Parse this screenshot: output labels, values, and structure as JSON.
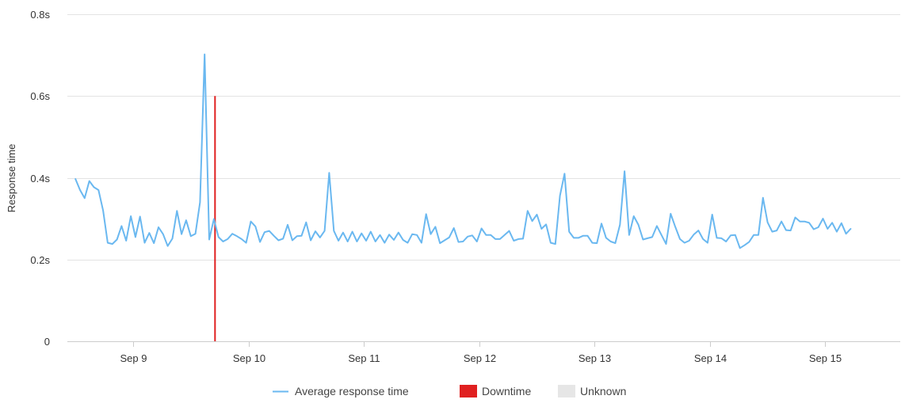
{
  "chart_data": {
    "type": "line",
    "ylabel": "Response time",
    "y_ticks": [
      {
        "value": 0,
        "label": "0"
      },
      {
        "value": 0.2,
        "label": "0.2s"
      },
      {
        "value": 0.4,
        "label": "0.4s"
      },
      {
        "value": 0.6,
        "label": "0.6s"
      },
      {
        "value": 0.8,
        "label": "0.8s"
      }
    ],
    "ylim": [
      0,
      0.8
    ],
    "xlim": [
      8.43,
      15.65
    ],
    "x_ticks": [
      {
        "value": 9,
        "label": "Sep 9"
      },
      {
        "value": 10,
        "label": "Sep 10"
      },
      {
        "value": 11,
        "label": "Sep 11"
      },
      {
        "value": 12,
        "label": "Sep 12"
      },
      {
        "value": 13,
        "label": "Sep 13"
      },
      {
        "value": 14,
        "label": "Sep 14"
      },
      {
        "value": 15,
        "label": "Sep 15"
      }
    ],
    "grid": true,
    "legend_position": "bottom",
    "legend": [
      {
        "label": "Average response time",
        "color": "#6ab8f0",
        "kind": "line"
      },
      {
        "label": "Downtime",
        "color": "#e02020",
        "kind": "box"
      },
      {
        "label": "Unknown",
        "color": "#e6e6e6",
        "kind": "box"
      }
    ],
    "series": [
      {
        "name": "Average response time",
        "color": "#6ab8f0",
        "x_start": 8.5,
        "x_step": 0.04,
        "values": [
          0.397,
          0.37,
          0.35,
          0.392,
          0.377,
          0.37,
          0.32,
          0.241,
          0.238,
          0.249,
          0.282,
          0.246,
          0.306,
          0.255,
          0.305,
          0.241,
          0.265,
          0.24,
          0.279,
          0.262,
          0.233,
          0.251,
          0.319,
          0.262,
          0.296,
          0.257,
          0.263,
          0.34,
          0.702,
          0.249,
          0.299,
          0.255,
          0.244,
          0.25,
          0.263,
          0.257,
          0.25,
          0.241,
          0.293,
          0.281,
          0.243,
          0.267,
          0.27,
          0.258,
          0.247,
          0.251,
          0.285,
          0.247,
          0.257,
          0.258,
          0.291,
          0.247,
          0.269,
          0.254,
          0.27,
          0.412,
          0.27,
          0.246,
          0.266,
          0.244,
          0.268,
          0.244,
          0.264,
          0.246,
          0.268,
          0.244,
          0.26,
          0.241,
          0.261,
          0.248,
          0.266,
          0.248,
          0.241,
          0.262,
          0.26,
          0.241,
          0.311,
          0.262,
          0.28,
          0.24,
          0.247,
          0.254,
          0.277,
          0.243,
          0.244,
          0.256,
          0.259,
          0.244,
          0.276,
          0.26,
          0.26,
          0.25,
          0.25,
          0.26,
          0.27,
          0.246,
          0.25,
          0.251,
          0.319,
          0.294,
          0.31,
          0.275,
          0.286,
          0.241,
          0.238,
          0.356,
          0.41,
          0.268,
          0.253,
          0.253,
          0.258,
          0.258,
          0.241,
          0.24,
          0.288,
          0.253,
          0.244,
          0.24,
          0.285,
          0.416,
          0.26,
          0.306,
          0.285,
          0.249,
          0.252,
          0.255,
          0.282,
          0.26,
          0.238,
          0.312,
          0.28,
          0.25,
          0.241,
          0.246,
          0.261,
          0.271,
          0.25,
          0.241,
          0.31,
          0.253,
          0.252,
          0.244,
          0.259,
          0.26,
          0.228,
          0.235,
          0.243,
          0.26,
          0.26,
          0.351,
          0.291,
          0.268,
          0.271,
          0.293,
          0.272,
          0.271,
          0.303,
          0.293,
          0.293,
          0.29,
          0.274,
          0.279,
          0.3,
          0.275,
          0.29,
          0.268,
          0.289,
          0.263,
          0.275
        ]
      }
    ],
    "downtime_events": [
      {
        "x": 9.71,
        "value": 0.6
      }
    ]
  }
}
